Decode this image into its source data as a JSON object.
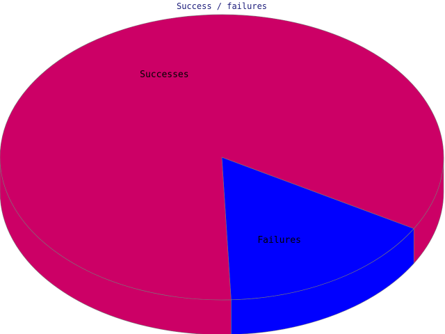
{
  "chart_data": {
    "type": "pie",
    "title": "Success / failures",
    "slices": [
      {
        "label": "Successes",
        "value": 84,
        "color": "#cc0066"
      },
      {
        "label": "Failures",
        "value": 16,
        "color": "#0000ff"
      }
    ],
    "colors": {
      "title": "#1c1c7a",
      "outline": "#7a7a7a",
      "background": "#ffffff"
    }
  }
}
